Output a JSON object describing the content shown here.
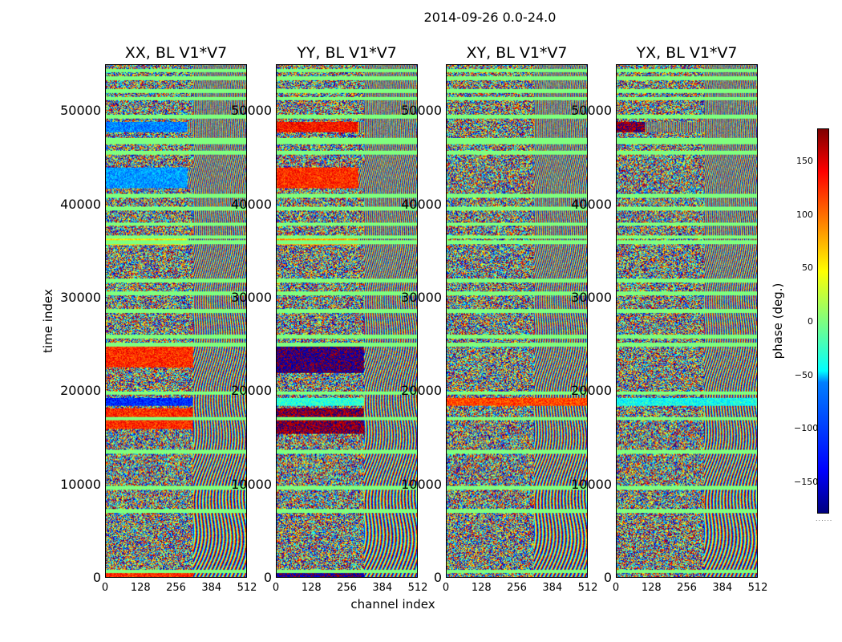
{
  "chart_data": {
    "type": "heatmap",
    "title": "2014-09-26 0.0-24.0",
    "xlabel": "channel index",
    "ylabel": "time index",
    "xlim": [
      0,
      512
    ],
    "ylim": [
      0,
      55000
    ],
    "xticks": [
      "0",
      "128",
      "256",
      "384",
      "512"
    ],
    "yticks": [
      "0",
      "10000",
      "20000",
      "30000",
      "40000",
      "50000"
    ],
    "panels": [
      {
        "title": "XX, BL V1*V7",
        "pol": "XX"
      },
      {
        "title": "YY, BL V1*V7",
        "pol": "YY"
      },
      {
        "title": "XY, BL V1*V7",
        "pol": "XY"
      },
      {
        "title": "YX, BL V1*V7",
        "pol": "YX"
      }
    ],
    "colorbar": {
      "label": "phase (deg.)",
      "range": [
        -180,
        180
      ],
      "ticks": [
        "150",
        "100",
        "50",
        "0",
        "−50",
        "−100",
        "−150"
      ],
      "colormap": "jet"
    }
  }
}
